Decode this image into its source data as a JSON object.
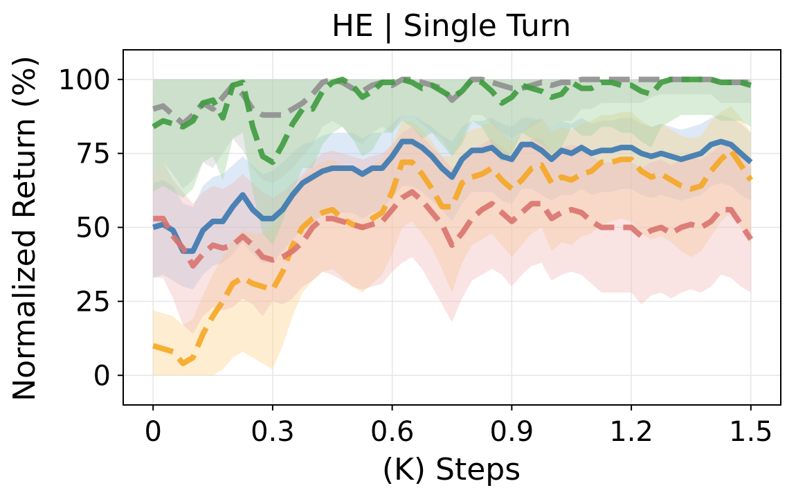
{
  "chart_data": {
    "type": "line",
    "title": "HE | Single Turn",
    "xlabel": "(K) Steps",
    "ylabel": "Normalized Return (%)",
    "xlim": [
      -0.075,
      1.575
    ],
    "ylim": [
      -10,
      110
    ],
    "xticks": [
      0,
      0.3,
      0.6,
      0.9,
      1.2,
      1.5
    ],
    "xtick_labels": [
      "0",
      "0.3",
      "0.6",
      "0.9",
      "1.2",
      "1.5"
    ],
    "yticks": [
      0,
      25,
      50,
      75,
      100
    ],
    "ytick_labels": [
      "0",
      "25",
      "50",
      "75",
      "100"
    ],
    "grid": true,
    "series": [
      {
        "name": "blue",
        "color": "#3a78b0",
        "band_color": "#a9c8e8",
        "dashed": false,
        "x": [
          0,
          0.025,
          0.05,
          0.075,
          0.1,
          0.125,
          0.15,
          0.175,
          0.2,
          0.225,
          0.25,
          0.275,
          0.3,
          0.325,
          0.35,
          0.375,
          0.4,
          0.425,
          0.45,
          0.475,
          0.5,
          0.525,
          0.55,
          0.575,
          0.6,
          0.625,
          0.65,
          0.675,
          0.7,
          0.725,
          0.75,
          0.775,
          0.8,
          0.825,
          0.85,
          0.875,
          0.9,
          0.925,
          0.95,
          0.975,
          1.0,
          1.025,
          1.05,
          1.075,
          1.1,
          1.125,
          1.15,
          1.175,
          1.2,
          1.225,
          1.25,
          1.275,
          1.3,
          1.325,
          1.35,
          1.375,
          1.4,
          1.425,
          1.45,
          1.475,
          1.5
        ],
        "values": [
          50,
          51,
          49,
          42,
          42,
          49,
          52,
          52,
          57,
          61,
          56,
          53,
          53,
          56,
          61,
          65,
          67,
          69,
          70,
          70,
          70,
          68,
          70,
          70,
          74,
          79,
          79,
          77,
          74,
          70,
          67,
          73,
          76,
          76,
          77,
          74,
          73,
          78,
          78,
          76,
          73,
          76,
          75,
          77,
          75,
          76,
          76,
          77,
          77,
          75,
          74,
          75,
          74,
          73,
          74,
          75,
          78,
          79,
          78,
          75,
          72
        ],
        "lower": [
          33,
          34,
          32,
          30,
          29,
          34,
          37,
          38,
          41,
          45,
          41,
          38,
          38,
          42,
          46,
          50,
          52,
          54,
          55,
          55,
          55,
          53,
          55,
          56,
          60,
          64,
          64,
          62,
          59,
          56,
          52,
          58,
          62,
          62,
          62,
          59,
          58,
          63,
          63,
          61,
          59,
          61,
          61,
          63,
          61,
          62,
          62,
          63,
          63,
          61,
          60,
          61,
          60,
          59,
          60,
          61,
          64,
          65,
          64,
          61,
          59
        ],
        "upper": [
          65,
          66,
          64,
          58,
          57,
          64,
          67,
          68,
          71,
          74,
          71,
          68,
          69,
          72,
          75,
          78,
          79,
          81,
          82,
          82,
          82,
          80,
          82,
          82,
          85,
          88,
          88,
          86,
          84,
          81,
          79,
          84,
          86,
          86,
          87,
          85,
          84,
          87,
          87,
          86,
          84,
          86,
          85,
          87,
          85,
          86,
          86,
          87,
          87,
          85,
          84,
          85,
          84,
          83,
          84,
          85,
          87,
          88,
          87,
          85,
          82
        ]
      },
      {
        "name": "orange",
        "color": "#f5a623",
        "band_color": "#fcd18a",
        "dashed": true,
        "x": [
          0,
          0.025,
          0.05,
          0.075,
          0.1,
          0.125,
          0.15,
          0.175,
          0.2,
          0.225,
          0.25,
          0.275,
          0.3,
          0.325,
          0.35,
          0.375,
          0.4,
          0.425,
          0.45,
          0.475,
          0.5,
          0.525,
          0.55,
          0.575,
          0.6,
          0.625,
          0.65,
          0.675,
          0.7,
          0.725,
          0.75,
          0.775,
          0.8,
          0.825,
          0.85,
          0.875,
          0.9,
          0.925,
          0.95,
          0.975,
          1.0,
          1.025,
          1.05,
          1.075,
          1.1,
          1.125,
          1.15,
          1.175,
          1.2,
          1.225,
          1.25,
          1.275,
          1.3,
          1.325,
          1.35,
          1.375,
          1.4,
          1.425,
          1.45,
          1.475,
          1.5
        ],
        "values": [
          10,
          9,
          8,
          4,
          6,
          14,
          20,
          25,
          31,
          33,
          31,
          30,
          29,
          35,
          44,
          50,
          53,
          55,
          56,
          53,
          51,
          50,
          53,
          55,
          62,
          72,
          72,
          68,
          63,
          57,
          57,
          65,
          67,
          68,
          70,
          66,
          63,
          66,
          70,
          71,
          65,
          67,
          66,
          68,
          69,
          72,
          72,
          73,
          73,
          69,
          67,
          68,
          66,
          64,
          63,
          64,
          69,
          73,
          76,
          71,
          66
        ],
        "lower": [
          0,
          0,
          0,
          0,
          0,
          0,
          0,
          2,
          6,
          8,
          6,
          4,
          2,
          10,
          20,
          28,
          32,
          35,
          36,
          33,
          30,
          28,
          31,
          34,
          41,
          50,
          52,
          48,
          43,
          36,
          28,
          38,
          44,
          46,
          48,
          44,
          40,
          44,
          48,
          50,
          42,
          45,
          44,
          47,
          48,
          51,
          52,
          53,
          52,
          48,
          46,
          47,
          45,
          42,
          40,
          42,
          47,
          52,
          55,
          50,
          44
        ],
        "upper": [
          22,
          21,
          20,
          17,
          19,
          27,
          34,
          40,
          46,
          49,
          48,
          48,
          50,
          55,
          62,
          67,
          70,
          72,
          73,
          71,
          69,
          68,
          71,
          73,
          78,
          86,
          86,
          83,
          79,
          74,
          74,
          81,
          83,
          84,
          86,
          82,
          79,
          82,
          86,
          87,
          82,
          84,
          83,
          85,
          86,
          88,
          88,
          89,
          89,
          86,
          84,
          85,
          83,
          81,
          80,
          81,
          86,
          89,
          91,
          87,
          82
        ]
      },
      {
        "name": "red",
        "color": "#d9736f",
        "band_color": "#f0b8b8",
        "dashed": true,
        "x": [
          0,
          0.025,
          0.05,
          0.075,
          0.1,
          0.125,
          0.15,
          0.175,
          0.2,
          0.225,
          0.25,
          0.275,
          0.3,
          0.325,
          0.35,
          0.375,
          0.4,
          0.425,
          0.45,
          0.475,
          0.5,
          0.525,
          0.55,
          0.575,
          0.6,
          0.625,
          0.65,
          0.675,
          0.7,
          0.725,
          0.75,
          0.775,
          0.8,
          0.825,
          0.85,
          0.875,
          0.9,
          0.925,
          0.95,
          0.975,
          1.0,
          1.025,
          1.05,
          1.075,
          1.1,
          1.125,
          1.15,
          1.175,
          1.2,
          1.225,
          1.25,
          1.275,
          1.3,
          1.325,
          1.35,
          1.375,
          1.4,
          1.425,
          1.45,
          1.475,
          1.5
        ],
        "values": [
          53,
          53,
          47,
          43,
          37,
          41,
          44,
          43,
          44,
          47,
          44,
          40,
          39,
          40,
          42,
          45,
          50,
          53,
          53,
          52,
          51,
          50,
          51,
          52,
          56,
          60,
          62,
          59,
          55,
          51,
          44,
          48,
          53,
          56,
          58,
          55,
          52,
          55,
          58,
          58,
          53,
          55,
          56,
          55,
          52,
          50,
          50,
          50,
          50,
          47,
          49,
          50,
          48,
          50,
          51,
          50,
          52,
          56,
          56,
          51,
          46
        ],
        "lower": [
          33,
          33,
          26,
          17,
          14,
          20,
          23,
          22,
          23,
          26,
          24,
          20,
          25,
          24,
          26,
          30,
          32,
          35,
          34,
          32,
          30,
          29,
          30,
          31,
          35,
          38,
          40,
          36,
          30,
          24,
          18,
          26,
          32,
          34,
          36,
          34,
          30,
          34,
          37,
          38,
          32,
          34,
          35,
          34,
          31,
          28,
          28,
          28,
          28,
          24,
          27,
          28,
          26,
          28,
          29,
          28,
          30,
          34,
          33,
          30,
          28
        ],
        "upper": [
          70,
          72,
          66,
          62,
          58,
          62,
          64,
          63,
          65,
          68,
          65,
          62,
          60,
          62,
          65,
          68,
          72,
          75,
          76,
          75,
          74,
          73,
          74,
          75,
          78,
          82,
          84,
          81,
          77,
          74,
          70,
          72,
          76,
          78,
          80,
          77,
          74,
          77,
          80,
          80,
          75,
          77,
          78,
          77,
          74,
          72,
          72,
          72,
          72,
          70,
          72,
          73,
          71,
          73,
          74,
          73,
          75,
          78,
          78,
          74,
          70
        ]
      },
      {
        "name": "gray",
        "color": "#8f8f8f",
        "band_color": "#c8c8c8",
        "dashed": true,
        "x": [
          0,
          0.025,
          0.05,
          0.075,
          0.1,
          0.125,
          0.15,
          0.175,
          0.2,
          0.225,
          0.25,
          0.275,
          0.3,
          0.325,
          0.35,
          0.375,
          0.4,
          0.425,
          0.45,
          0.475,
          0.5,
          0.525,
          0.55,
          0.575,
          0.6,
          0.625,
          0.65,
          0.675,
          0.7,
          0.725,
          0.75,
          0.775,
          0.8,
          0.825,
          0.85,
          0.875,
          0.9,
          0.925,
          0.95,
          0.975,
          1.0,
          1.025,
          1.05,
          1.075,
          1.1,
          1.125,
          1.15,
          1.175,
          1.2,
          1.225,
          1.25,
          1.275,
          1.3,
          1.325,
          1.35,
          1.375,
          1.4,
          1.425,
          1.45,
          1.475,
          1.5
        ],
        "values": [
          90,
          91,
          88,
          85,
          88,
          92,
          90,
          94,
          98,
          95,
          90,
          88,
          88,
          88,
          90,
          92,
          95,
          99,
          100,
          99,
          97,
          96,
          98,
          99,
          98,
          100,
          100,
          99,
          98,
          97,
          93,
          96,
          100,
          100,
          99,
          98,
          97,
          97,
          98,
          99,
          98,
          99,
          99,
          100,
          100,
          100,
          100,
          100,
          100,
          100,
          100,
          100,
          100,
          100,
          100,
          100,
          100,
          99,
          99,
          99,
          99
        ],
        "lower": [
          70,
          72,
          68,
          63,
          66,
          72,
          70,
          75,
          80,
          76,
          70,
          66,
          65,
          67,
          70,
          74,
          78,
          84,
          86,
          84,
          80,
          78,
          82,
          84,
          82,
          88,
          88,
          85,
          82,
          80,
          74,
          80,
          88,
          88,
          85,
          82,
          80,
          82,
          84,
          86,
          84,
          86,
          86,
          90,
          90,
          92,
          92,
          92,
          92,
          92,
          94,
          95,
          95,
          95,
          95,
          95,
          95,
          92,
          92,
          92,
          92
        ],
        "upper": [
          100,
          100,
          100,
          100,
          100,
          100,
          100,
          100,
          100,
          100,
          100,
          100,
          100,
          100,
          100,
          100,
          100,
          100,
          100,
          100,
          100,
          100,
          100,
          100,
          100,
          100,
          100,
          100,
          100,
          100,
          100,
          100,
          100,
          100,
          100,
          100,
          100,
          100,
          100,
          100,
          100,
          100,
          100,
          100,
          100,
          100,
          100,
          100,
          100,
          100,
          100,
          100,
          100,
          100,
          100,
          100,
          100,
          100,
          100,
          100,
          100
        ]
      },
      {
        "name": "green",
        "color": "#3f9b3f",
        "band_color": "#9fd19f",
        "dashed": true,
        "x": [
          0,
          0.025,
          0.05,
          0.075,
          0.1,
          0.125,
          0.15,
          0.175,
          0.2,
          0.225,
          0.25,
          0.275,
          0.3,
          0.325,
          0.35,
          0.375,
          0.4,
          0.425,
          0.45,
          0.475,
          0.5,
          0.525,
          0.55,
          0.575,
          0.6,
          0.625,
          0.65,
          0.675,
          0.7,
          0.725,
          0.75,
          0.775,
          0.8,
          0.825,
          0.85,
          0.875,
          0.9,
          0.925,
          0.95,
          0.975,
          1.0,
          1.025,
          1.05,
          1.075,
          1.1,
          1.125,
          1.15,
          1.175,
          1.2,
          1.225,
          1.25,
          1.275,
          1.3,
          1.325,
          1.35,
          1.375,
          1.4,
          1.425,
          1.45,
          1.475,
          1.5
        ],
        "values": [
          84,
          86,
          85,
          84,
          86,
          92,
          93,
          87,
          98,
          99,
          84,
          74,
          72,
          78,
          85,
          90,
          90,
          96,
          99,
          100,
          98,
          94,
          96,
          99,
          99,
          100,
          99,
          97,
          98,
          96,
          94,
          96,
          100,
          99,
          96,
          92,
          94,
          98,
          97,
          96,
          94,
          95,
          99,
          97,
          97,
          99,
          99,
          98,
          98,
          96,
          95,
          99,
          100,
          100,
          100,
          100,
          100,
          99,
          99,
          99,
          98
        ],
        "lower": [
          62,
          64,
          62,
          60,
          63,
          72,
          74,
          66,
          80,
          82,
          62,
          48,
          44,
          52,
          62,
          70,
          70,
          78,
          82,
          84,
          80,
          74,
          76,
          82,
          82,
          86,
          84,
          80,
          82,
          78,
          74,
          78,
          86,
          84,
          78,
          72,
          75,
          82,
          80,
          78,
          75,
          77,
          84,
          81,
          81,
          84,
          84,
          82,
          82,
          79,
          77,
          84,
          86,
          88,
          88,
          88,
          88,
          86,
          86,
          86,
          84
        ],
        "upper": [
          100,
          100,
          100,
          100,
          100,
          100,
          100,
          100,
          100,
          100,
          100,
          100,
          100,
          100,
          100,
          100,
          100,
          100,
          100,
          100,
          100,
          100,
          100,
          100,
          100,
          100,
          100,
          100,
          100,
          100,
          100,
          100,
          100,
          100,
          100,
          100,
          100,
          100,
          100,
          100,
          100,
          100,
          100,
          100,
          100,
          100,
          100,
          100,
          100,
          100,
          100,
          100,
          100,
          100,
          100,
          100,
          100,
          100,
          100,
          100,
          100
        ]
      }
    ]
  }
}
